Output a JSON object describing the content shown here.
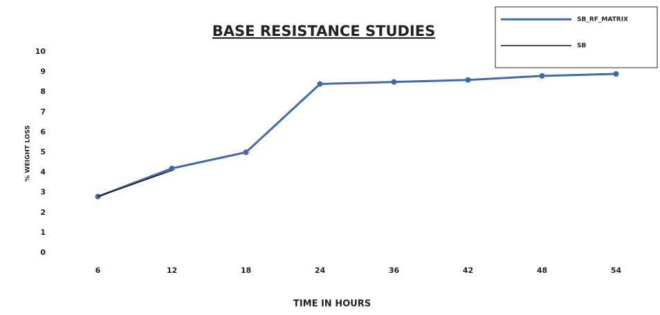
{
  "chart_data": {
    "type": "line",
    "title": "BASE RESISTANCE STUDIES",
    "x_label": "TIME IN HOURS",
    "y_label": "% WEIGHT LOSS",
    "categories": [
      "6",
      "12",
      "18",
      "24",
      "36",
      "42",
      "48",
      "54"
    ],
    "series": [
      {
        "name": "SB_RF_MATRIX",
        "color": "#3f68b0",
        "values": [
          2.8,
          4.2,
          5,
          8.4,
          8.5,
          8.6,
          8.8,
          8.9
        ]
      },
      {
        "name": "SB",
        "color": "#111111",
        "values": [
          2.8,
          4.1,
          null,
          null,
          null,
          null,
          null,
          null
        ]
      }
    ],
    "ylim": [
      0,
      10
    ],
    "yticks": [
      0,
      1,
      2,
      3,
      4,
      5,
      6,
      7,
      8,
      9,
      10
    ],
    "grid": false,
    "legend": "top-right"
  }
}
